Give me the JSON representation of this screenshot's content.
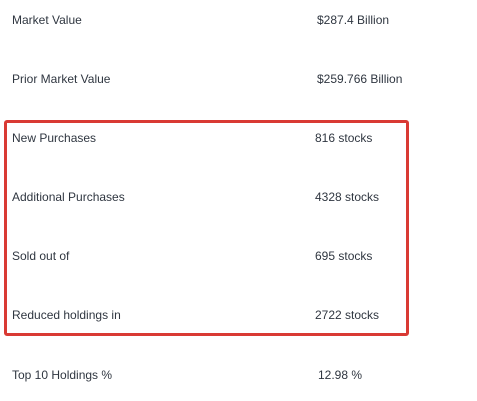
{
  "rows": [
    {
      "label": "Market Value",
      "value": "$287.4 Billion"
    },
    {
      "label": "Prior Market Value",
      "value": "$259.766 Billion"
    },
    {
      "label": "New Purchases",
      "value": "816 stocks"
    },
    {
      "label": "Additional Purchases",
      "value": "4328 stocks"
    },
    {
      "label": "Sold out of",
      "value": "695 stocks"
    },
    {
      "label": "Reduced holdings in",
      "value": "2722 stocks"
    },
    {
      "label": "Top 10 Holdings %",
      "value": "12.98 %"
    }
  ],
  "colors": {
    "highlight_border": "#d93a34",
    "text": "#2f3640",
    "background": "#ffffff"
  }
}
